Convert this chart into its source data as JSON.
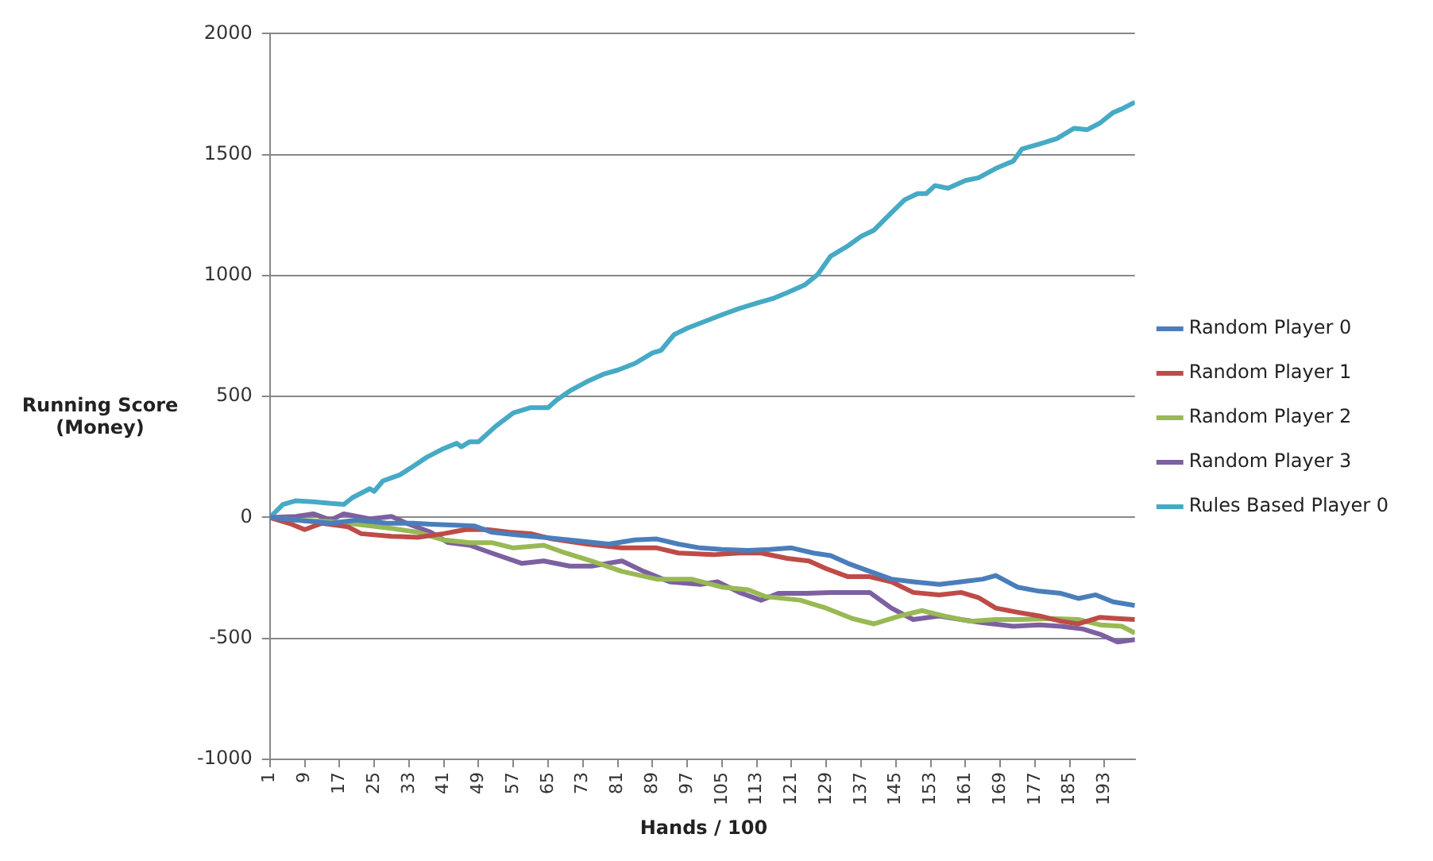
{
  "chart_data": {
    "type": "line",
    "xlabel": "Hands / 100",
    "ylabel": "Running Score\n(Money)",
    "xlim": [
      1,
      200
    ],
    "xticks": [
      1,
      9,
      17,
      25,
      33,
      41,
      49,
      57,
      65,
      73,
      81,
      89,
      97,
      105,
      113,
      121,
      129,
      137,
      145,
      153,
      161,
      169,
      177,
      185,
      193
    ],
    "ylim": [
      -1000,
      2000
    ],
    "yticks": [
      -1000,
      -500,
      0,
      500,
      1000,
      1500,
      2000
    ],
    "grid": "y",
    "legend": "right",
    "marker": "none",
    "line_style": "solid",
    "series": [
      {
        "name": "Random Player 0",
        "color": "#4a7ebb",
        "x": [
          1,
          7,
          15,
          21,
          28,
          34,
          38,
          44,
          48,
          52,
          57,
          64,
          72,
          79,
          85,
          90,
          95,
          100,
          105,
          111,
          116,
          121,
          126,
          130,
          134,
          139,
          144,
          149,
          155,
          160,
          165,
          168,
          173,
          178,
          183,
          187,
          191,
          195,
          200
        ],
        "values": [
          0,
          -11,
          -24,
          -11,
          -24,
          -24,
          -28,
          -32,
          -35,
          -61,
          -71,
          -82,
          -97,
          -110,
          -93,
          -89,
          -110,
          -126,
          -132,
          -136,
          -132,
          -126,
          -147,
          -158,
          -190,
          -223,
          -255,
          -266,
          -277,
          -266,
          -255,
          -240,
          -288,
          -305,
          -314,
          -335,
          -320,
          -349,
          -364
        ]
      },
      {
        "name": "Random Player 1",
        "color": "#be4b48",
        "x": [
          1,
          6,
          9,
          13,
          19,
          22,
          29,
          35,
          41,
          46,
          51,
          56,
          61,
          66,
          74,
          82,
          90,
          95,
          103,
          109,
          114,
          120,
          125,
          129,
          134,
          139,
          144,
          149,
          155,
          160,
          164,
          168,
          173,
          178,
          183,
          187,
          192,
          196,
          200
        ],
        "values": [
          0,
          -28,
          -50,
          -24,
          -39,
          -67,
          -78,
          -82,
          -67,
          -50,
          -50,
          -61,
          -67,
          -89,
          -110,
          -126,
          -126,
          -147,
          -154,
          -147,
          -147,
          -169,
          -180,
          -212,
          -245,
          -245,
          -266,
          -310,
          -320,
          -310,
          -331,
          -375,
          -392,
          -407,
          -429,
          -440,
          -413,
          -418,
          -422
        ]
      },
      {
        "name": "Random Player 2",
        "color": "#98b954",
        "x": [
          1,
          7,
          15,
          21,
          29,
          35,
          41,
          47,
          52,
          57,
          64,
          69,
          75,
          82,
          90,
          98,
          105,
          111,
          115,
          123,
          129,
          135,
          140,
          146,
          151,
          156,
          162,
          168,
          174,
          181,
          187,
          192,
          197,
          200
        ],
        "values": [
          0,
          -11,
          -17,
          -28,
          -45,
          -61,
          -93,
          -104,
          -104,
          -126,
          -115,
          -147,
          -180,
          -223,
          -255,
          -255,
          -288,
          -299,
          -327,
          -342,
          -375,
          -418,
          -440,
          -407,
          -385,
          -407,
          -429,
          -422,
          -422,
          -418,
          -422,
          -444,
          -450,
          -478
        ]
      },
      {
        "name": "Random Player 3",
        "color": "#7d60a0",
        "x": [
          1,
          7,
          11,
          15,
          18,
          24,
          29,
          33,
          38,
          42,
          47,
          52,
          59,
          64,
          70,
          75,
          82,
          87,
          93,
          100,
          104,
          109,
          114,
          118,
          124,
          130,
          135,
          139,
          144,
          149,
          155,
          160,
          165,
          172,
          178,
          183,
          188,
          192,
          196,
          200
        ],
        "values": [
          0,
          4,
          15,
          -11,
          15,
          -6,
          4,
          -28,
          -61,
          -104,
          -115,
          -147,
          -190,
          -180,
          -201,
          -201,
          -180,
          -223,
          -266,
          -277,
          -266,
          -310,
          -342,
          -314,
          -314,
          -310,
          -310,
          -310,
          -375,
          -422,
          -407,
          -422,
          -435,
          -450,
          -444,
          -450,
          -461,
          -483,
          -515,
          -505
        ]
      },
      {
        "name": "Rules Based Player 0",
        "color": "#46aac5",
        "x": [
          1,
          4,
          7,
          11,
          15,
          18,
          20,
          24,
          25,
          27,
          31,
          34,
          37,
          41,
          44,
          45,
          47,
          49,
          53,
          57,
          61,
          65,
          67,
          70,
          74,
          78,
          81,
          85,
          89,
          91,
          94,
          97,
          101,
          105,
          109,
          113,
          117,
          120,
          124,
          127,
          130,
          134,
          137,
          140,
          143,
          147,
          150,
          152,
          154,
          157,
          161,
          164,
          168,
          172,
          174,
          178,
          182,
          186,
          189,
          192,
          195,
          197,
          200
        ],
        "values": [
          0,
          54,
          69,
          65,
          58,
          54,
          82,
          119,
          108,
          151,
          177,
          212,
          248,
          285,
          307,
          292,
          313,
          313,
          378,
          432,
          454,
          454,
          486,
          523,
          562,
          594,
          609,
          637,
          680,
          691,
          756,
          782,
          810,
          838,
          864,
          886,
          907,
          929,
          961,
          1004,
          1080,
          1123,
          1162,
          1188,
          1242,
          1313,
          1339,
          1339,
          1372,
          1361,
          1393,
          1404,
          1443,
          1473,
          1523,
          1544,
          1566,
          1609,
          1603,
          1631,
          1674,
          1689,
          1717
        ]
      }
    ]
  }
}
